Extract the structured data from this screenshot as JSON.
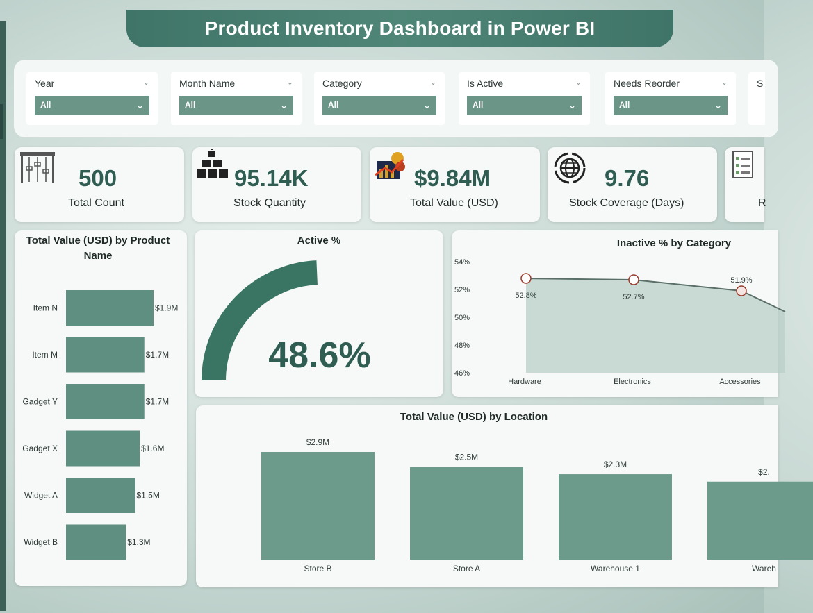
{
  "header": {
    "title": "Product Inventory Dashboard in Power BI"
  },
  "filters": [
    {
      "label": "Year",
      "value": "All"
    },
    {
      "label": "Month Name",
      "value": "All"
    },
    {
      "label": "Category",
      "value": "All"
    },
    {
      "label": "Is Active",
      "value": "All"
    },
    {
      "label": "Needs Reorder",
      "value": "All"
    },
    {
      "label": "S",
      "value": ""
    }
  ],
  "kpis": [
    {
      "value": "500",
      "label": "Total Count",
      "icon": "shelves-icon"
    },
    {
      "value": "95.14K",
      "label": "Stock Quantity",
      "icon": "boxes-icon"
    },
    {
      "value": "$9.84M",
      "label": "Total Value (USD)",
      "icon": "money-chart-icon"
    },
    {
      "value": "9.76",
      "label": "Stock Coverage (Days)",
      "icon": "globe-cycle-icon"
    },
    {
      "value": "",
      "label": "R",
      "icon": "checklist-icon"
    }
  ],
  "colors": {
    "accent": "#3f7468",
    "bar": "#5e8f80",
    "bar_light": "#6c9a8b",
    "gauge": "#3a7564",
    "area": "#b9cfc8"
  },
  "chart_data": [
    {
      "type": "bar",
      "orientation": "horizontal",
      "title": "Total Value (USD) by Product Name",
      "categories": [
        "Item N",
        "Item M",
        "Gadget Y",
        "Gadget X",
        "Widget A",
        "Widget B"
      ],
      "values": [
        1.9,
        1.7,
        1.7,
        1.6,
        1.5,
        1.3
      ],
      "data_labels": [
        "$1.9M",
        "$1.7M",
        "$1.7M",
        "$1.6M",
        "$1.5M",
        "$1.3M"
      ]
    },
    {
      "type": "gauge",
      "title": "Active %",
      "value": 48.6,
      "display": "48.6%"
    },
    {
      "type": "area",
      "title": "Inactive % by Category",
      "categories": [
        "Hardware",
        "Electronics",
        "Accessories"
      ],
      "values": [
        52.8,
        52.7,
        51.9
      ],
      "data_labels": [
        "52.8%",
        "52.7%",
        "51.9%"
      ],
      "y_ticks": [
        "54%",
        "52%",
        "50%",
        "48%",
        "46%"
      ],
      "ylim": [
        46,
        54
      ]
    },
    {
      "type": "bar",
      "title": "Total Value (USD) by Location",
      "categories": [
        "Store B",
        "Store A",
        "Warehouse 1",
        "Wareh"
      ],
      "values": [
        2.9,
        2.5,
        2.3,
        2.1
      ],
      "data_labels": [
        "$2.9M",
        "$2.5M",
        "$2.3M",
        "$2."
      ]
    }
  ]
}
